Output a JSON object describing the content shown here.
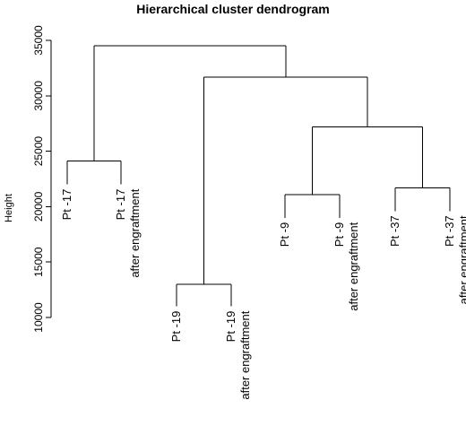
{
  "chart_data": {
    "type": "dendrogram",
    "title": "Hierarchical cluster dendrogram",
    "ylabel": "Height",
    "xlabel": "",
    "ylim": [
      10000,
      35000
    ],
    "y_ticks": [
      "10000",
      "15000",
      "20000",
      "25000",
      "30000",
      "35000"
    ],
    "tick_values": [
      10000,
      15000,
      20000,
      25000,
      30000,
      35000
    ],
    "leaves": [
      {
        "id": "pt17",
        "lines": [
          "Pt -17"
        ],
        "height": 22000
      },
      {
        "id": "pt17ae",
        "lines": [
          "Pt -17",
          "after engraftment"
        ],
        "height": 22000
      },
      {
        "id": "pt19",
        "lines": [
          "Pt -19"
        ],
        "height": 11000
      },
      {
        "id": "pt19ae",
        "lines": [
          "Pt -19",
          "after engraftment"
        ],
        "height": 11000
      },
      {
        "id": "pt9",
        "lines": [
          "Pt -9"
        ],
        "height": 19000
      },
      {
        "id": "pt9ae",
        "lines": [
          "Pt -9",
          "after engraftment"
        ],
        "height": 19000
      },
      {
        "id": "pt37",
        "lines": [
          "Pt -37"
        ],
        "height": 19600
      },
      {
        "id": "pt37ae",
        "lines": [
          "Pt -37",
          "after engraftment"
        ],
        "height": 19600
      }
    ],
    "merges": [
      {
        "id": "m1",
        "left": "pt17",
        "right": "pt17ae",
        "height": 24100
      },
      {
        "id": "m2",
        "left": "pt19",
        "right": "pt19ae",
        "height": 13000
      },
      {
        "id": "m3",
        "left": "pt9",
        "right": "pt9ae",
        "height": 21100
      },
      {
        "id": "m4",
        "left": "pt37",
        "right": "pt37ae",
        "height": 21700
      },
      {
        "id": "m5",
        "left": "m3",
        "right": "m4",
        "height": 27200
      },
      {
        "id": "m6",
        "left": "m2",
        "right": "m5",
        "height": 31700
      },
      {
        "id": "m7",
        "left": "m1",
        "right": "m6",
        "height": 34500
      }
    ]
  }
}
